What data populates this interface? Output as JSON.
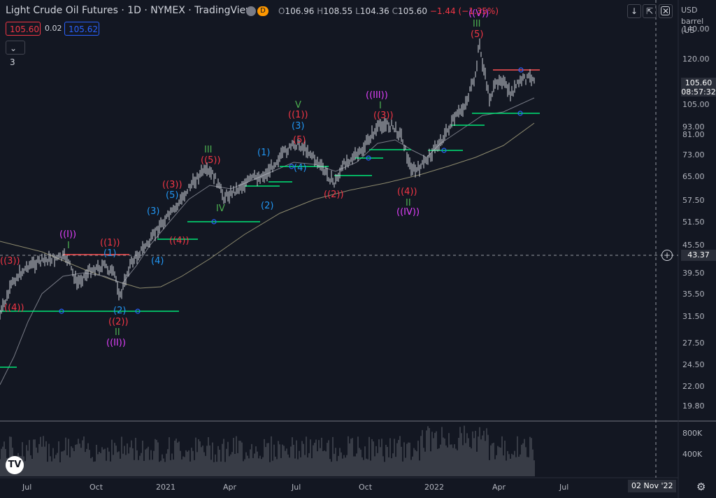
{
  "header": {
    "title": "Light Crude Oil Futures · 1D · NYMEX · TradingView",
    "ohlc": {
      "o_label": "O",
      "o": "106.96",
      "h_label": "H",
      "h": "108.55",
      "l_label": "L",
      "l": "104.36",
      "c_label": "C",
      "c": "105.60",
      "change": "−1.44 (−1.35%)"
    },
    "sell_price": "105.60",
    "spread": "0.02",
    "buy_price": "105.62",
    "indicators_toggle": "3",
    "symbol_badge": "D"
  },
  "price_axis": {
    "currency": "USD",
    "unit": "barrel (US",
    "ticks": [
      "140.00",
      "120.00",
      "105.00",
      "93.00",
      "81.00",
      "73.00",
      "65.00",
      "57.50",
      "51.50",
      "45.50",
      "39.50",
      "35.50",
      "31.50",
      "27.50",
      "24.50",
      "22.00",
      "19.80"
    ],
    "last_price": "105.60",
    "countdown": "08:57:32",
    "crosshair_price": "43.37"
  },
  "volume_axis": {
    "ticks": [
      "800K",
      "400K"
    ]
  },
  "time_axis": {
    "ticks": [
      "Jul",
      "Oct",
      "2021",
      "Apr",
      "Jul",
      "Oct",
      "2022",
      "Apr",
      "Jul"
    ],
    "crosshair_date": "02 Nov '22"
  },
  "colors": {
    "bg": "#131722",
    "candle": "#d1d4dc",
    "red": "#f23645",
    "green": "#22ab94",
    "blue": "#2962ff",
    "magenta": "#e040fb",
    "wave_green": "#4caf50",
    "level_green": "#00e676",
    "level_red": "#ff5252"
  },
  "wave_labels": [
    {
      "text": "((I))",
      "color": "magenta"
    },
    {
      "text": "I",
      "color": "green"
    },
    {
      "text": "((1))",
      "color": "red"
    },
    {
      "text": "(1)",
      "color": "blue"
    },
    {
      "text": "((3))",
      "color": "red"
    },
    {
      "text": "((5))",
      "color": "red"
    },
    {
      "text": "((4))",
      "color": "red"
    },
    {
      "text": "((2))",
      "color": "red"
    },
    {
      "text": "II",
      "color": "green"
    },
    {
      "text": "((II))",
      "color": "magenta"
    },
    {
      "text": "(2)",
      "color": "blue"
    },
    {
      "text": "(3)",
      "color": "blue"
    },
    {
      "text": "(4)",
      "color": "blue"
    },
    {
      "text": "(5)",
      "color": "blue"
    },
    {
      "text": "III",
      "color": "green"
    },
    {
      "text": "(5)",
      "color": "red"
    },
    {
      "text": "IV",
      "color": "green"
    },
    {
      "text": "V",
      "color": "green"
    },
    {
      "text": "((III))",
      "color": "magenta"
    },
    {
      "text": "((IV))",
      "color": "magenta"
    },
    {
      "text": "((V))",
      "color": "magenta"
    }
  ]
}
